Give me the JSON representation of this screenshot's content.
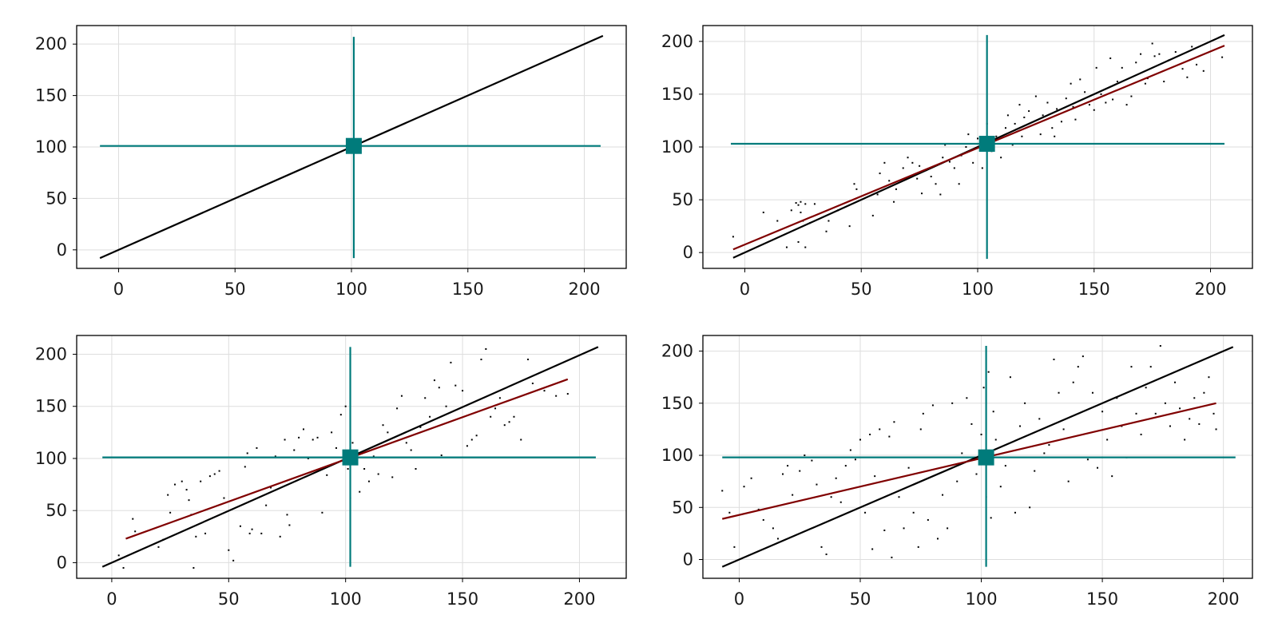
{
  "chart_data": [
    {
      "type": "scatter",
      "xlim": [
        -18,
        218
      ],
      "ylim": [
        -18,
        218
      ],
      "xticks": [
        0,
        50,
        100,
        150,
        200
      ],
      "yticks": [
        0,
        50,
        100,
        150,
        200
      ],
      "grid": true,
      "center_marker": [
        101,
        101
      ],
      "mean_lines": {
        "x": 101,
        "y": 101,
        "x_span": [
          -8,
          207
        ],
        "y_span": [
          -8,
          207
        ]
      },
      "reference_line": {
        "x": [
          -8,
          208
        ],
        "y": [
          -8,
          208
        ]
      },
      "fit_line": null,
      "points": []
    },
    {
      "type": "scatter",
      "xlim": [
        -18,
        218
      ],
      "ylim": [
        -15,
        215
      ],
      "xticks": [
        0,
        50,
        100,
        150,
        200
      ],
      "yticks": [
        0,
        50,
        100,
        150,
        200
      ],
      "grid": true,
      "center_marker": [
        104,
        103
      ],
      "mean_lines": {
        "x": 104,
        "y": 103,
        "x_span": [
          -6,
          206
        ],
        "y_span": [
          -6,
          206
        ]
      },
      "reference_line": {
        "x": [
          -5,
          206
        ],
        "y": [
          -5,
          206
        ]
      },
      "fit_line": {
        "x": [
          -5,
          206
        ],
        "y": [
          3,
          196
        ]
      },
      "points": [
        [
          -5,
          15
        ],
        [
          8,
          38
        ],
        [
          14,
          30
        ],
        [
          18,
          5
        ],
        [
          20,
          40
        ],
        [
          22,
          47
        ],
        [
          23,
          45
        ],
        [
          24,
          48
        ],
        [
          24,
          38
        ],
        [
          25,
          30
        ],
        [
          26,
          46
        ],
        [
          23,
          10
        ],
        [
          26,
          5
        ],
        [
          28,
          28
        ],
        [
          30,
          46
        ],
        [
          35,
          20
        ],
        [
          36,
          30
        ],
        [
          40,
          40
        ],
        [
          45,
          25
        ],
        [
          47,
          65
        ],
        [
          48,
          60
        ],
        [
          55,
          35
        ],
        [
          57,
          55
        ],
        [
          58,
          75
        ],
        [
          60,
          85
        ],
        [
          62,
          68
        ],
        [
          64,
          48
        ],
        [
          65,
          60
        ],
        [
          68,
          80
        ],
        [
          70,
          90
        ],
        [
          72,
          85
        ],
        [
          74,
          70
        ],
        [
          75,
          82
        ],
        [
          76,
          56
        ],
        [
          78,
          78
        ],
        [
          80,
          72
        ],
        [
          82,
          65
        ],
        [
          84,
          55
        ],
        [
          85,
          90
        ],
        [
          86,
          102
        ],
        [
          88,
          86
        ],
        [
          90,
          80
        ],
        [
          92,
          65
        ],
        [
          93,
          92
        ],
        [
          95,
          100
        ],
        [
          96,
          112
        ],
        [
          98,
          85
        ],
        [
          100,
          108
        ],
        [
          102,
          80
        ],
        [
          104,
          122
        ],
        [
          106,
          96
        ],
        [
          108,
          110
        ],
        [
          110,
          90
        ],
        [
          112,
          118
        ],
        [
          113,
          130
        ],
        [
          115,
          102
        ],
        [
          116,
          122
        ],
        [
          118,
          140
        ],
        [
          119,
          110
        ],
        [
          120,
          128
        ],
        [
          122,
          134
        ],
        [
          125,
          148
        ],
        [
          127,
          112
        ],
        [
          128,
          130
        ],
        [
          130,
          142
        ],
        [
          132,
          118
        ],
        [
          133,
          110
        ],
        [
          134,
          136
        ],
        [
          136,
          124
        ],
        [
          138,
          146
        ],
        [
          140,
          160
        ],
        [
          141,
          138
        ],
        [
          142,
          126
        ],
        [
          144,
          164
        ],
        [
          146,
          152
        ],
        [
          148,
          140
        ],
        [
          150,
          135
        ],
        [
          151,
          175
        ],
        [
          153,
          150
        ],
        [
          155,
          142
        ],
        [
          157,
          184
        ],
        [
          158,
          145
        ],
        [
          160,
          162
        ],
        [
          162,
          175
        ],
        [
          164,
          140
        ],
        [
          166,
          148
        ],
        [
          168,
          180
        ],
        [
          170,
          188
        ],
        [
          172,
          160
        ],
        [
          173,
          165
        ],
        [
          175,
          198
        ],
        [
          176,
          186
        ],
        [
          178,
          188
        ],
        [
          180,
          162
        ],
        [
          182,
          182
        ],
        [
          185,
          190
        ],
        [
          188,
          174
        ],
        [
          190,
          166
        ],
        [
          192,
          195
        ],
        [
          194,
          178
        ],
        [
          197,
          172
        ],
        [
          205,
          185
        ]
      ]
    },
    {
      "type": "scatter",
      "xlim": [
        -15,
        220
      ],
      "ylim": [
        -15,
        218
      ],
      "xticks": [
        0,
        50,
        100,
        150,
        200
      ],
      "yticks": [
        0,
        50,
        100,
        150,
        200
      ],
      "grid": true,
      "center_marker": [
        102,
        101
      ],
      "mean_lines": {
        "x": 102,
        "y": 101,
        "x_span": [
          -4,
          207
        ],
        "y_span": [
          -4,
          207
        ]
      },
      "reference_line": {
        "x": [
          -4,
          208
        ],
        "y": [
          -4,
          207
        ]
      },
      "fit_line": {
        "x": [
          6,
          195
        ],
        "y": [
          23,
          176
        ]
      },
      "points": [
        [
          3,
          7
        ],
        [
          5,
          -5
        ],
        [
          9,
          42
        ],
        [
          10,
          30
        ],
        [
          20,
          15
        ],
        [
          22,
          22
        ],
        [
          24,
          65
        ],
        [
          25,
          48
        ],
        [
          27,
          75
        ],
        [
          30,
          78
        ],
        [
          32,
          70
        ],
        [
          33,
          60
        ],
        [
          34,
          46
        ],
        [
          35,
          -5
        ],
        [
          36,
          25
        ],
        [
          38,
          78
        ],
        [
          40,
          28
        ],
        [
          42,
          83
        ],
        [
          44,
          85
        ],
        [
          46,
          88
        ],
        [
          48,
          62
        ],
        [
          50,
          12
        ],
        [
          52,
          2
        ],
        [
          55,
          35
        ],
        [
          57,
          92
        ],
        [
          58,
          105
        ],
        [
          59,
          28
        ],
        [
          60,
          32
        ],
        [
          62,
          110
        ],
        [
          64,
          28
        ],
        [
          66,
          55
        ],
        [
          68,
          72
        ],
        [
          70,
          102
        ],
        [
          72,
          25
        ],
        [
          74,
          118
        ],
        [
          75,
          46
        ],
        [
          76,
          36
        ],
        [
          78,
          108
        ],
        [
          80,
          120
        ],
        [
          82,
          128
        ],
        [
          84,
          100
        ],
        [
          86,
          118
        ],
        [
          88,
          120
        ],
        [
          90,
          48
        ],
        [
          92,
          84
        ],
        [
          94,
          125
        ],
        [
          96,
          110
        ],
        [
          98,
          142
        ],
        [
          100,
          150
        ],
        [
          101,
          90
        ],
        [
          102,
          62
        ],
        [
          103,
          115
        ],
        [
          105,
          100
        ],
        [
          106,
          68
        ],
        [
          108,
          90
        ],
        [
          110,
          78
        ],
        [
          112,
          102
        ],
        [
          114,
          85
        ],
        [
          116,
          132
        ],
        [
          118,
          125
        ],
        [
          120,
          82
        ],
        [
          122,
          148
        ],
        [
          124,
          160
        ],
        [
          126,
          115
        ],
        [
          128,
          108
        ],
        [
          130,
          90
        ],
        [
          132,
          130
        ],
        [
          134,
          158
        ],
        [
          136,
          140
        ],
        [
          138,
          175
        ],
        [
          140,
          168
        ],
        [
          141,
          103
        ],
        [
          143,
          150
        ],
        [
          145,
          192
        ],
        [
          147,
          170
        ],
        [
          150,
          165
        ],
        [
          152,
          112
        ],
        [
          154,
          118
        ],
        [
          156,
          122
        ],
        [
          158,
          195
        ],
        [
          160,
          205
        ],
        [
          162,
          140
        ],
        [
          164,
          148
        ],
        [
          166,
          158
        ],
        [
          168,
          132
        ],
        [
          170,
          135
        ],
        [
          172,
          140
        ],
        [
          175,
          118
        ],
        [
          178,
          195
        ],
        [
          180,
          172
        ],
        [
          185,
          165
        ],
        [
          190,
          160
        ],
        [
          195,
          162
        ]
      ]
    },
    {
      "type": "scatter",
      "xlim": [
        -15,
        212
      ],
      "ylim": [
        -18,
        215
      ],
      "xticks": [
        0,
        50,
        100,
        150,
        200
      ],
      "yticks": [
        0,
        50,
        100,
        150,
        200
      ],
      "grid": true,
      "center_marker": [
        102,
        98
      ],
      "mean_lines": {
        "x": 102,
        "y": 98,
        "x_span": [
          -7,
          205
        ],
        "y_span": [
          -7,
          205
        ]
      },
      "reference_line": {
        "x": [
          -7,
          204
        ],
        "y": [
          -7,
          204
        ]
      },
      "fit_line": {
        "x": [
          -7,
          197
        ],
        "y": [
          39,
          150
        ]
      },
      "points": [
        [
          -7,
          66
        ],
        [
          -4,
          45
        ],
        [
          -2,
          12
        ],
        [
          2,
          70
        ],
        [
          5,
          78
        ],
        [
          8,
          48
        ],
        [
          10,
          38
        ],
        [
          14,
          30
        ],
        [
          16,
          20
        ],
        [
          18,
          82
        ],
        [
          20,
          90
        ],
        [
          22,
          62
        ],
        [
          25,
          85
        ],
        [
          27,
          100
        ],
        [
          30,
          95
        ],
        [
          32,
          72
        ],
        [
          34,
          12
        ],
        [
          36,
          5
        ],
        [
          38,
          60
        ],
        [
          40,
          78
        ],
        [
          42,
          55
        ],
        [
          44,
          90
        ],
        [
          46,
          105
        ],
        [
          48,
          96
        ],
        [
          50,
          115
        ],
        [
          52,
          45
        ],
        [
          54,
          120
        ],
        [
          55,
          10
        ],
        [
          56,
          80
        ],
        [
          58,
          125
        ],
        [
          60,
          28
        ],
        [
          62,
          118
        ],
        [
          63,
          2
        ],
        [
          64,
          132
        ],
        [
          66,
          60
        ],
        [
          68,
          30
        ],
        [
          70,
          88
        ],
        [
          72,
          45
        ],
        [
          74,
          12
        ],
        [
          75,
          125
        ],
        [
          76,
          140
        ],
        [
          78,
          38
        ],
        [
          80,
          148
        ],
        [
          82,
          20
        ],
        [
          84,
          62
        ],
        [
          86,
          30
        ],
        [
          88,
          150
        ],
        [
          90,
          75
        ],
        [
          92,
          102
        ],
        [
          94,
          155
        ],
        [
          96,
          130
        ],
        [
          98,
          82
        ],
        [
          100,
          120
        ],
        [
          101,
          165
        ],
        [
          102,
          60
        ],
        [
          103,
          180
        ],
        [
          104,
          40
        ],
        [
          105,
          142
        ],
        [
          106,
          115
        ],
        [
          108,
          70
        ],
        [
          110,
          90
        ],
        [
          112,
          175
        ],
        [
          114,
          45
        ],
        [
          116,
          128
        ],
        [
          118,
          150
        ],
        [
          120,
          50
        ],
        [
          122,
          85
        ],
        [
          124,
          135
        ],
        [
          126,
          102
        ],
        [
          128,
          110
        ],
        [
          130,
          192
        ],
        [
          132,
          160
        ],
        [
          134,
          125
        ],
        [
          136,
          75
        ],
        [
          138,
          170
        ],
        [
          140,
          185
        ],
        [
          142,
          195
        ],
        [
          144,
          96
        ],
        [
          146,
          160
        ],
        [
          148,
          88
        ],
        [
          150,
          142
        ],
        [
          152,
          115
        ],
        [
          154,
          80
        ],
        [
          156,
          155
        ],
        [
          158,
          128
        ],
        [
          160,
          98
        ],
        [
          162,
          185
        ],
        [
          164,
          140
        ],
        [
          166,
          120
        ],
        [
          168,
          165
        ],
        [
          170,
          185
        ],
        [
          172,
          140
        ],
        [
          174,
          205
        ],
        [
          176,
          150
        ],
        [
          178,
          128
        ],
        [
          180,
          170
        ],
        [
          182,
          145
        ],
        [
          184,
          115
        ],
        [
          186,
          135
        ],
        [
          188,
          155
        ],
        [
          190,
          130
        ],
        [
          192,
          160
        ],
        [
          194,
          175
        ],
        [
          196,
          140
        ],
        [
          197,
          125
        ]
      ]
    }
  ]
}
